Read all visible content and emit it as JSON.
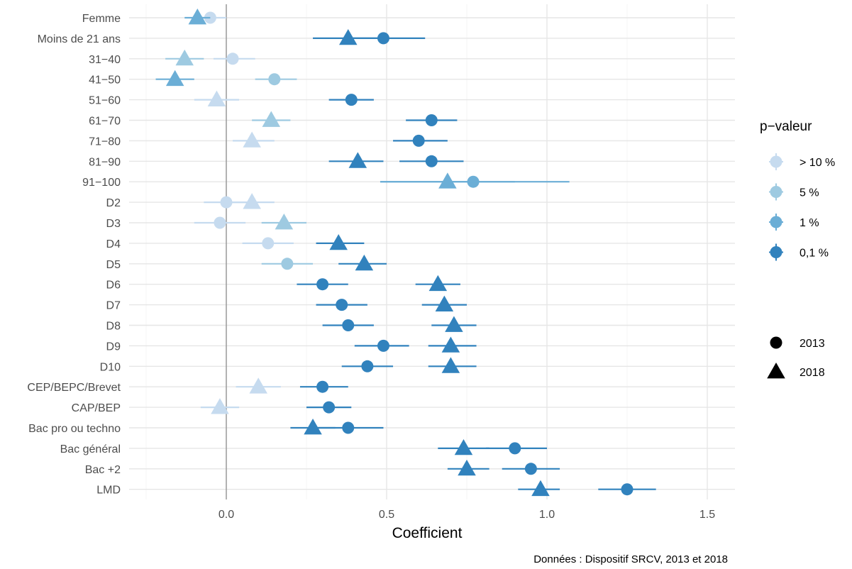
{
  "chart_data": {
    "type": "scatter",
    "xlabel": "Coefficient",
    "caption": "Données : Dispositif SRCV, 2013 et 2018",
    "xlim": [
      -0.25,
      1.6
    ],
    "x_ticks": [
      0.0,
      0.5,
      1.0,
      1.5
    ],
    "x_tick_labels": [
      "0.0",
      "0.5",
      "1.0",
      "1.5"
    ],
    "reference_line_x": 0,
    "grid": true,
    "categories": [
      "Femme",
      "Moins de 21 ans",
      "31−40",
      "41−50",
      "51−60",
      "61−70",
      "71−80",
      "81−90",
      "91−100",
      "D2",
      "D3",
      "D4",
      "D5",
      "D6",
      "D7",
      "D8",
      "D9",
      "D10",
      "CEP/BEPC/Brevet",
      "CAP/BEP",
      "Bac pro ou techno",
      "Bac général",
      "Bac +2",
      "LMD"
    ],
    "pvalue_colors": {
      "p10": "#c6dbef",
      "p5": "#9ecae1",
      "p1": "#6baed6",
      "p01": "#3182bd"
    },
    "legend": {
      "position": "right",
      "color_title": "p−valeur",
      "color_items": [
        {
          "key": "p10",
          "label": "> 10 %"
        },
        {
          "key": "p5",
          "label": "5 %"
        },
        {
          "key": "p1",
          "label": "1 %"
        },
        {
          "key": "p01",
          "label": "0,1 %"
        }
      ],
      "shape_items": [
        {
          "shape": "circle",
          "label": "2013"
        },
        {
          "shape": "triangle",
          "label": "2018"
        }
      ]
    },
    "series": [
      {
        "name": "2013",
        "shape": "circle",
        "points": [
          {
            "y": "Femme",
            "x": -0.05,
            "lo": -0.1,
            "hi": 0.0,
            "p": "p10"
          },
          {
            "y": "Moins de 21 ans",
            "x": 0.49,
            "lo": 0.37,
            "hi": 0.62,
            "p": "p01"
          },
          {
            "y": "31−40",
            "x": 0.02,
            "lo": -0.04,
            "hi": 0.09,
            "p": "p10"
          },
          {
            "y": "41−50",
            "x": 0.15,
            "lo": 0.09,
            "hi": 0.22,
            "p": "p5"
          },
          {
            "y": "51−60",
            "x": 0.39,
            "lo": 0.32,
            "hi": 0.46,
            "p": "p01"
          },
          {
            "y": "61−70",
            "x": 0.64,
            "lo": 0.56,
            "hi": 0.72,
            "p": "p01"
          },
          {
            "y": "71−80",
            "x": 0.6,
            "lo": 0.52,
            "hi": 0.69,
            "p": "p01"
          },
          {
            "y": "81−90",
            "x": 0.64,
            "lo": 0.54,
            "hi": 0.74,
            "p": "p01"
          },
          {
            "y": "91−100",
            "x": 0.77,
            "lo": 0.48,
            "hi": 1.07,
            "p": "p1"
          },
          {
            "y": "D2",
            "x": 0.0,
            "lo": -0.07,
            "hi": 0.07,
            "p": "p10"
          },
          {
            "y": "D3",
            "x": -0.02,
            "lo": -0.1,
            "hi": 0.06,
            "p": "p10"
          },
          {
            "y": "D4",
            "x": 0.13,
            "lo": 0.05,
            "hi": 0.21,
            "p": "p10"
          },
          {
            "y": "D5",
            "x": 0.19,
            "lo": 0.11,
            "hi": 0.27,
            "p": "p5"
          },
          {
            "y": "D6",
            "x": 0.3,
            "lo": 0.22,
            "hi": 0.38,
            "p": "p01"
          },
          {
            "y": "D7",
            "x": 0.36,
            "lo": 0.28,
            "hi": 0.44,
            "p": "p01"
          },
          {
            "y": "D8",
            "x": 0.38,
            "lo": 0.3,
            "hi": 0.46,
            "p": "p01"
          },
          {
            "y": "D9",
            "x": 0.49,
            "lo": 0.4,
            "hi": 0.57,
            "p": "p01"
          },
          {
            "y": "D10",
            "x": 0.44,
            "lo": 0.36,
            "hi": 0.52,
            "p": "p01"
          },
          {
            "y": "CEP/BEPC/Brevet",
            "x": 0.3,
            "lo": 0.23,
            "hi": 0.38,
            "p": "p01"
          },
          {
            "y": "CAP/BEP",
            "x": 0.32,
            "lo": 0.25,
            "hi": 0.39,
            "p": "p01"
          },
          {
            "y": "Bac pro ou techno",
            "x": 0.38,
            "lo": 0.28,
            "hi": 0.49,
            "p": "p01"
          },
          {
            "y": "Bac général",
            "x": 0.9,
            "lo": 0.81,
            "hi": 1.0,
            "p": "p01"
          },
          {
            "y": "Bac +2",
            "x": 0.95,
            "lo": 0.86,
            "hi": 1.04,
            "p": "p01"
          },
          {
            "y": "LMD",
            "x": 1.25,
            "lo": 1.16,
            "hi": 1.34,
            "p": "p01"
          }
        ]
      },
      {
        "name": "2018",
        "shape": "triangle",
        "points": [
          {
            "y": "Femme",
            "x": -0.09,
            "lo": -0.13,
            "hi": -0.05,
            "p": "p1"
          },
          {
            "y": "Moins de 21 ans",
            "x": 0.38,
            "lo": 0.27,
            "hi": 0.49,
            "p": "p01"
          },
          {
            "y": "31−40",
            "x": -0.13,
            "lo": -0.19,
            "hi": -0.07,
            "p": "p5"
          },
          {
            "y": "41−50",
            "x": -0.16,
            "lo": -0.22,
            "hi": -0.1,
            "p": "p1"
          },
          {
            "y": "51−60",
            "x": -0.03,
            "lo": -0.1,
            "hi": 0.04,
            "p": "p10"
          },
          {
            "y": "61−70",
            "x": 0.14,
            "lo": 0.08,
            "hi": 0.2,
            "p": "p5"
          },
          {
            "y": "71−80",
            "x": 0.08,
            "lo": 0.02,
            "hi": 0.15,
            "p": "p10"
          },
          {
            "y": "81−90",
            "x": 0.41,
            "lo": 0.32,
            "hi": 0.49,
            "p": "p01"
          },
          {
            "y": "91−100",
            "x": 0.69,
            "lo": 0.48,
            "hi": 0.9,
            "p": "p1"
          },
          {
            "y": "D2",
            "x": 0.08,
            "lo": 0.01,
            "hi": 0.15,
            "p": "p10"
          },
          {
            "y": "D3",
            "x": 0.18,
            "lo": 0.11,
            "hi": 0.25,
            "p": "p5"
          },
          {
            "y": "D4",
            "x": 0.35,
            "lo": 0.28,
            "hi": 0.43,
            "p": "p01"
          },
          {
            "y": "D5",
            "x": 0.43,
            "lo": 0.35,
            "hi": 0.5,
            "p": "p01"
          },
          {
            "y": "D6",
            "x": 0.66,
            "lo": 0.59,
            "hi": 0.73,
            "p": "p01"
          },
          {
            "y": "D7",
            "x": 0.68,
            "lo": 0.61,
            "hi": 0.75,
            "p": "p01"
          },
          {
            "y": "D8",
            "x": 0.71,
            "lo": 0.64,
            "hi": 0.78,
            "p": "p01"
          },
          {
            "y": "D9",
            "x": 0.7,
            "lo": 0.63,
            "hi": 0.78,
            "p": "p01"
          },
          {
            "y": "D10",
            "x": 0.7,
            "lo": 0.63,
            "hi": 0.78,
            "p": "p01"
          },
          {
            "y": "CEP/BEPC/Brevet",
            "x": 0.1,
            "lo": 0.03,
            "hi": 0.17,
            "p": "p10"
          },
          {
            "y": "CAP/BEP",
            "x": -0.02,
            "lo": -0.08,
            "hi": 0.04,
            "p": "p10"
          },
          {
            "y": "Bac pro ou techno",
            "x": 0.27,
            "lo": 0.2,
            "hi": 0.34,
            "p": "p01"
          },
          {
            "y": "Bac général",
            "x": 0.74,
            "lo": 0.66,
            "hi": 0.82,
            "p": "p01"
          },
          {
            "y": "Bac +2",
            "x": 0.75,
            "lo": 0.69,
            "hi": 0.82,
            "p": "p01"
          },
          {
            "y": "LMD",
            "x": 0.98,
            "lo": 0.91,
            "hi": 1.04,
            "p": "p01"
          }
        ]
      }
    ]
  }
}
